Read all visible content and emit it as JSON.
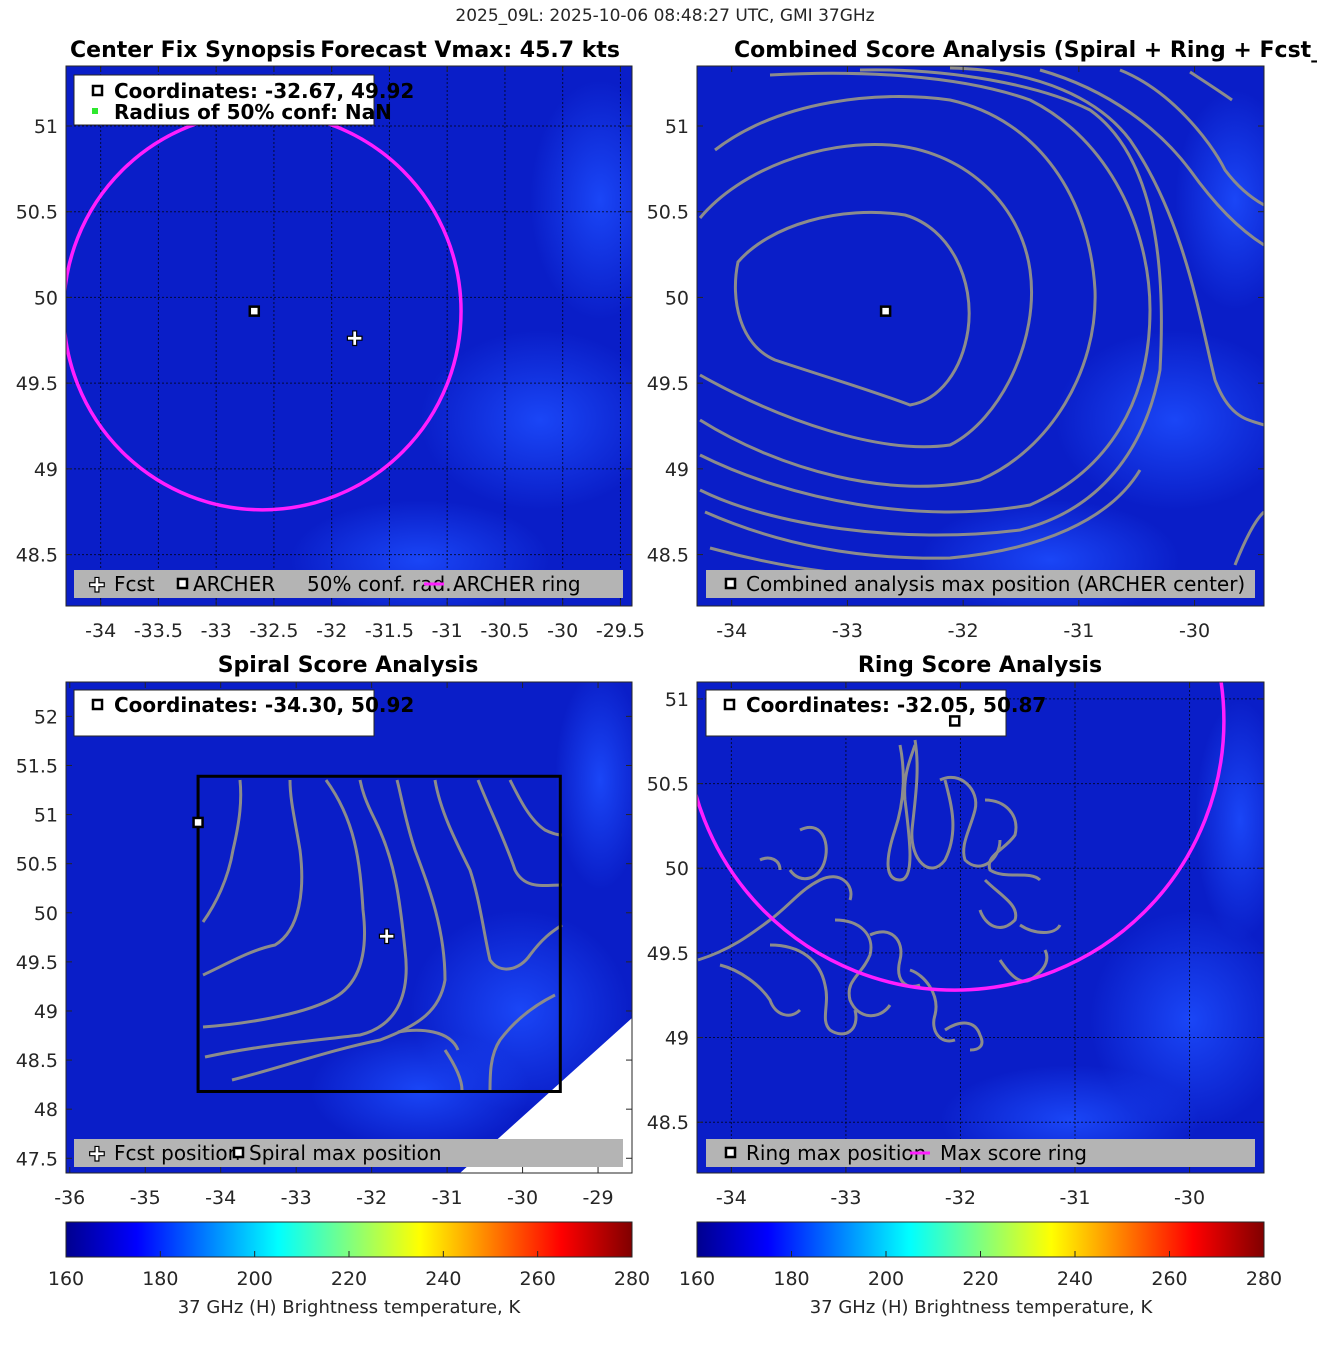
{
  "figure": {
    "suptitle": "2025_09L: 2025-10-06 08:48:27 UTC, GMI 37GHz"
  },
  "colors": {
    "background": "#0a1ec8",
    "contour": "#8c8c8c",
    "ring": "#ff1eff",
    "legend_box": "#b4b4b4"
  },
  "panels": {
    "synopsis": {
      "title_left": "Center Fix Synopsis",
      "title_right": "Forecast Vmax: 45.7 kts",
      "info_line1": "Coordinates: -32.67, 49.92",
      "info_line2": "Radius of 50% conf: NaN",
      "legend": [
        "Fcst",
        "ARCHER",
        "50% conf. rad.",
        "ARCHER ring"
      ]
    },
    "combined": {
      "title": "Combined Score Analysis (Spiral + Ring + Fcst_Pe",
      "legend": [
        "Combined analysis max position (ARCHER center)"
      ]
    },
    "spiral": {
      "title": "Spiral Score Analysis",
      "info_line1": "Coordinates: -34.30, 50.92",
      "legend": [
        "Fcst position",
        "Spiral max position"
      ]
    },
    "ring": {
      "title": "Ring Score Analysis",
      "info_line1": "Coordinates: -32.05, 50.87",
      "legend": [
        "Ring max position",
        "Max score ring"
      ]
    }
  },
  "colorbars": {
    "label": "37 GHz (H) Brightness temperature, K",
    "ticks": [
      "160",
      "180",
      "200",
      "220",
      "240",
      "260",
      "280"
    ]
  },
  "chart_data": [
    {
      "type": "heatmap",
      "title": "Center Fix Synopsis",
      "xlim": [
        -34.3,
        -29.4
      ],
      "ylim": [
        48.2,
        51.35
      ],
      "xticks": [
        -34,
        -33.5,
        -33,
        -32.5,
        -32,
        -31.5,
        -31,
        -30.5,
        -30,
        -29.5
      ],
      "yticks": [
        48.5,
        49,
        49.5,
        50,
        50.5,
        51
      ],
      "grid": true,
      "markers": [
        {
          "name": "Fcst",
          "x": -31.8,
          "y": 49.76
        },
        {
          "name": "ARCHER",
          "x": -32.67,
          "y": 49.92
        }
      ],
      "ring": {
        "name": "ARCHER ring",
        "x": -32.6,
        "y": 49.92,
        "radius_lon": 1.72
      },
      "legend_position": "bottom"
    },
    {
      "type": "heatmap",
      "title": "Combined Score Analysis (Spiral + Ring + Fcst_Pe",
      "xlim": [
        -34.3,
        -29.4
      ],
      "ylim": [
        48.2,
        51.35
      ],
      "xticks": [
        -34,
        -33,
        -32,
        -31,
        -30
      ],
      "yticks": [
        48.5,
        49,
        49.5,
        50,
        50.5,
        51
      ],
      "grid": false,
      "markers": [
        {
          "name": "Combined analysis max position (ARCHER center)",
          "x": -32.67,
          "y": 49.92
        }
      ],
      "legend_position": "bottom"
    },
    {
      "type": "heatmap",
      "title": "Spiral Score Analysis",
      "xlim": [
        -36.05,
        -28.55
      ],
      "ylim": [
        47.35,
        52.35
      ],
      "xticks": [
        -36,
        -35,
        -34,
        -33,
        -32,
        -31,
        -30,
        -29
      ],
      "yticks": [
        47.5,
        48,
        48.5,
        49,
        49.5,
        50,
        50.5,
        51,
        51.5,
        52
      ],
      "grid": false,
      "markers": [
        {
          "name": "Fcst position",
          "x": -31.8,
          "y": 49.76
        },
        {
          "name": "Spiral max position",
          "x": -34.3,
          "y": 50.92
        }
      ],
      "box": {
        "x0": -34.3,
        "x1": -29.5,
        "y0": 48.18,
        "y1": 51.39
      },
      "legend_position": "bottom"
    },
    {
      "type": "heatmap",
      "title": "Ring Score Analysis",
      "xlim": [
        -34.3,
        -29.35
      ],
      "ylim": [
        48.2,
        51.1
      ],
      "xticks": [
        -34,
        -33,
        -32,
        -31,
        -30
      ],
      "yticks": [
        48.5,
        49,
        49.5,
        50,
        50.5,
        51
      ],
      "grid": true,
      "markers": [
        {
          "name": "Ring max position",
          "x": -32.05,
          "y": 50.87
        }
      ],
      "ring": {
        "name": "Max score ring",
        "x": -32.05,
        "y": 50.87,
        "radius_lon": 2.35
      },
      "legend_position": "bottom"
    }
  ]
}
